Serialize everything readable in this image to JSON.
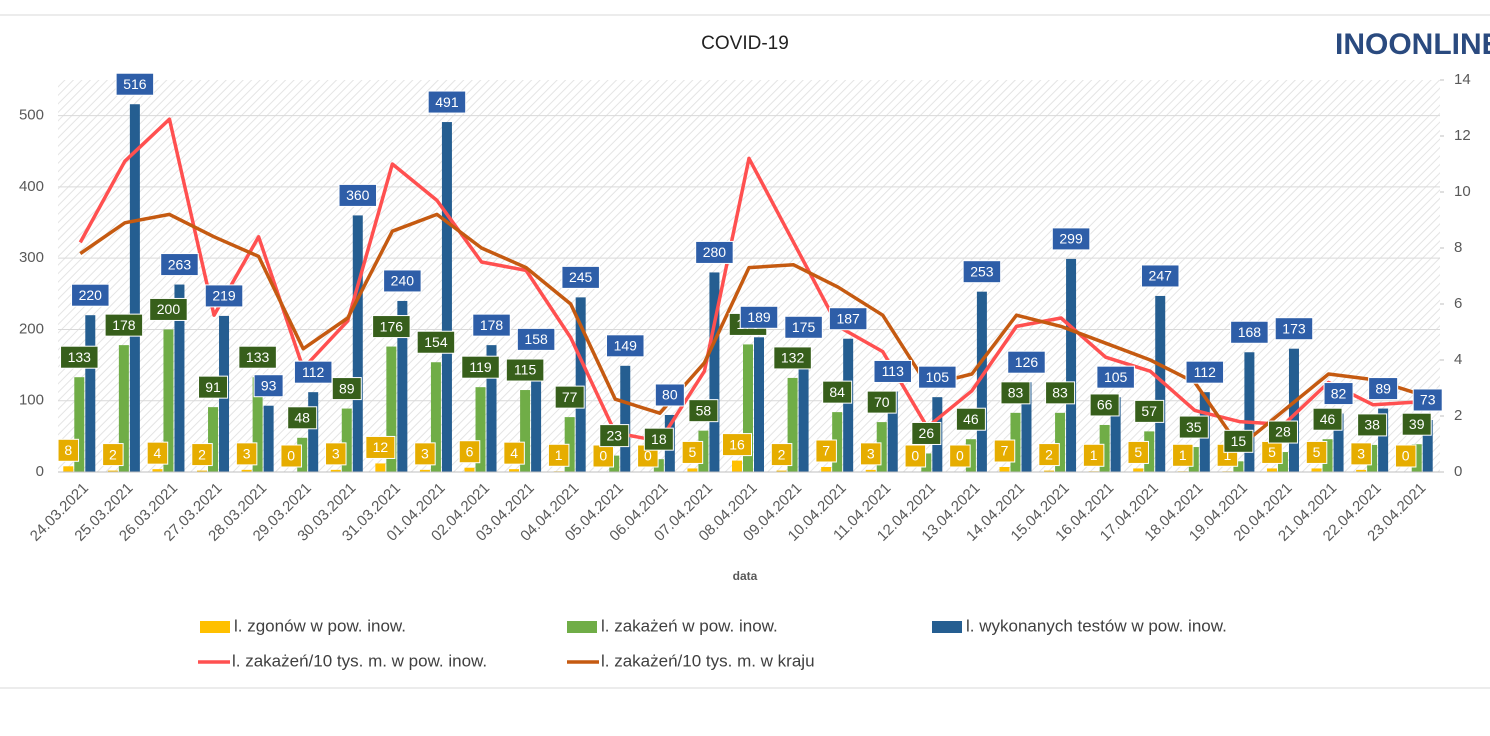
{
  "chart_data": {
    "type": "bar",
    "title": "COVID-19",
    "logo": "INOONLINE",
    "x_label": "data",
    "categories": [
      "24.03.2021",
      "25.03.2021",
      "26.03.2021",
      "27.03.2021",
      "28.03.2021",
      "29.03.2021",
      "30.03.2021",
      "31.03.2021",
      "01.04.2021",
      "02.04.2021",
      "03.04.2021",
      "04.04.2021",
      "05.04.2021",
      "06.04.2021",
      "07.04.2021",
      "08.04.2021",
      "09.04.2021",
      "10.04.2021",
      "11.04.2021",
      "12.04.2021",
      "13.04.2021",
      "14.04.2021",
      "15.04.2021",
      "16.04.2021",
      "17.04.2021",
      "18.04.2021",
      "19.04.2021",
      "20.04.2021",
      "21.04.2021",
      "22.04.2021",
      "23.04.2021"
    ],
    "series": [
      {
        "name": "l. zgonów w pow. inow.",
        "type": "bar",
        "color": "#ffc000",
        "label_color": "#e6ad00",
        "values": [
          8,
          2,
          4,
          2,
          3,
          0,
          3,
          12,
          3,
          6,
          4,
          1,
          0,
          0,
          5,
          16,
          2,
          7,
          3,
          0,
          0,
          7,
          2,
          1,
          5,
          1,
          1,
          5,
          5,
          3,
          0
        ]
      },
      {
        "name": "l. zakażeń w pow. inow.",
        "type": "bar",
        "color": "#70ad47",
        "label_color": "#375f1b",
        "values": [
          133,
          178,
          200,
          91,
          133,
          48,
          89,
          176,
          154,
          119,
          115,
          77,
          23,
          18,
          58,
          179,
          132,
          84,
          70,
          26,
          46,
          83,
          83,
          66,
          57,
          35,
          15,
          28,
          46,
          38,
          39
        ]
      },
      {
        "name": "l. wykonanych testów w pow. inow.",
        "type": "bar",
        "color": "#255e91",
        "label_color": "#2e5ea8",
        "values": [
          220,
          516,
          263,
          219,
          93,
          112,
          360,
          240,
          491,
          178,
          158,
          245,
          149,
          80,
          280,
          189,
          175,
          187,
          113,
          105,
          253,
          126,
          299,
          105,
          247,
          112,
          168,
          173,
          82,
          89,
          73
        ]
      },
      {
        "name": "l. zakażeń/10 tys. m. w pow. inow.",
        "type": "line",
        "axis": "y2",
        "color": "#ff5050",
        "values": [
          8.2,
          11.1,
          12.6,
          5.6,
          8.4,
          3.7,
          5.4,
          11.0,
          9.7,
          7.5,
          7.2,
          4.8,
          1.4,
          1.1,
          3.6,
          11.2,
          8.2,
          5.2,
          4.3,
          1.6,
          2.9,
          5.2,
          5.5,
          4.1,
          3.6,
          2.2,
          1.8,
          1.7,
          3.2,
          2.4,
          2.5
        ]
      },
      {
        "name": "l. zakażeń/10 tys. m. w kraju",
        "type": "line",
        "axis": "y2",
        "color": "#c55a11",
        "values": [
          7.8,
          8.9,
          9.2,
          8.4,
          7.7,
          4.4,
          5.5,
          8.6,
          9.2,
          8.0,
          7.3,
          6.0,
          2.6,
          2.1,
          3.9,
          7.3,
          7.4,
          6.6,
          5.6,
          3.1,
          3.5,
          5.6,
          5.2,
          4.6,
          4.0,
          3.2,
          0.9,
          2.2,
          3.5,
          3.3,
          2.8
        ]
      }
    ],
    "ylim": [
      0,
      550
    ],
    "yticks": [
      0,
      100,
      200,
      300,
      400,
      500
    ],
    "y2lim": [
      0,
      14
    ],
    "y2ticks": [
      0,
      2,
      4,
      6,
      8,
      10,
      12,
      14
    ],
    "grid": true
  }
}
